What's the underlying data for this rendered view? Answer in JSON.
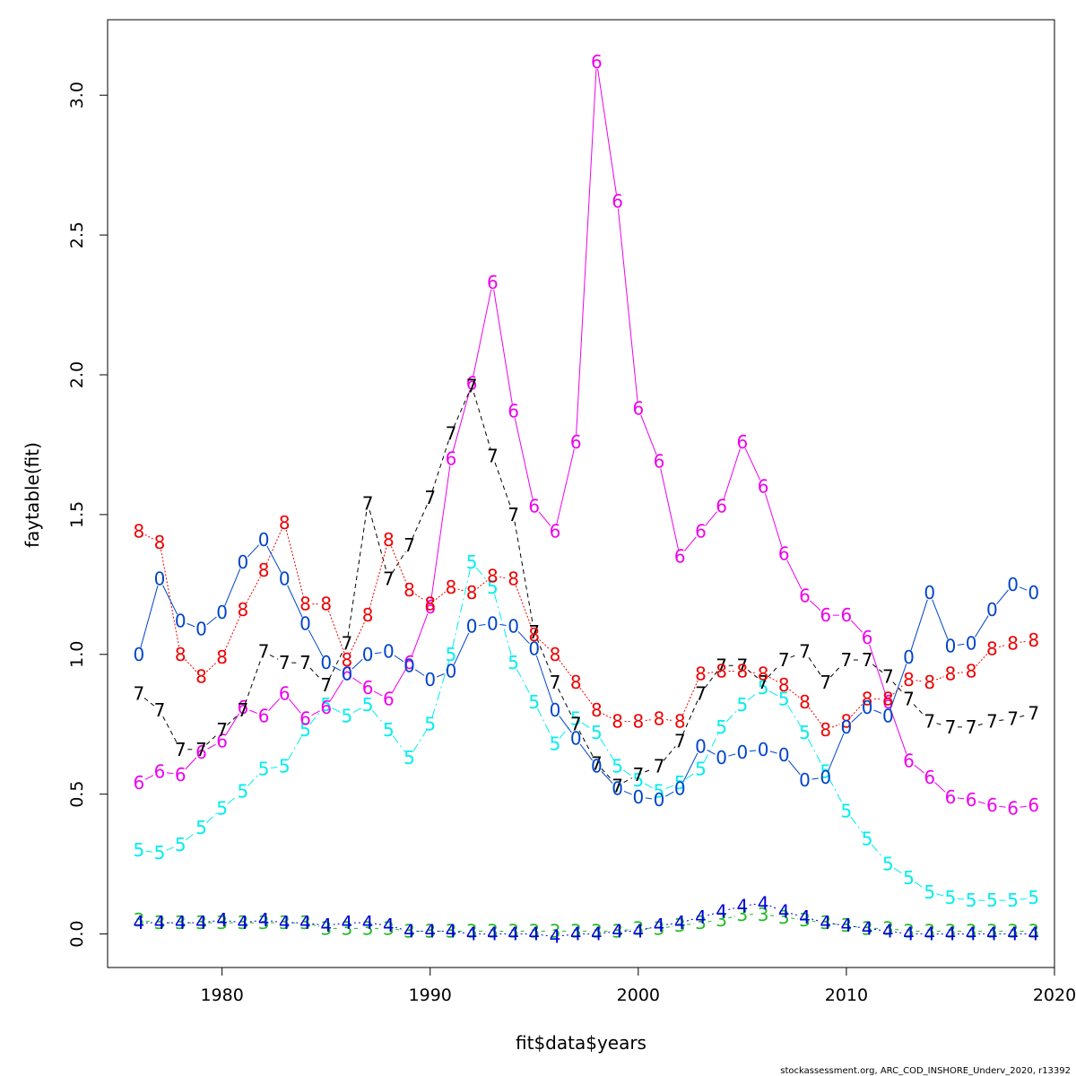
{
  "chart_data": {
    "type": "line",
    "xlabel": "fit$data$years",
    "ylabel": "faytable(fit)",
    "credit": "stockassessment.org, ARC_COD_INSHORE_Underv_2020, r13392",
    "xlim": [
      1974.5,
      2020
    ],
    "ylim": [
      -0.12,
      3.27
    ],
    "xticks": [
      1980,
      1990,
      2000,
      2010,
      2020
    ],
    "yticks": [
      0.0,
      0.5,
      1.0,
      1.5,
      2.0,
      2.5,
      3.0
    ],
    "ytick_labels": [
      "0.0",
      "0.5",
      "1.0",
      "1.5",
      "2.0",
      "2.5",
      "3.0"
    ],
    "grid": false,
    "x": [
      1976,
      1977,
      1978,
      1979,
      1980,
      1981,
      1982,
      1983,
      1984,
      1985,
      1986,
      1987,
      1988,
      1989,
      1990,
      1991,
      1992,
      1993,
      1994,
      1995,
      1996,
      1997,
      1998,
      1999,
      2000,
      2001,
      2002,
      2003,
      2004,
      2005,
      2006,
      2007,
      2008,
      2009,
      2010,
      2011,
      2012,
      2013,
      2014,
      2015,
      2016,
      2017,
      2018,
      2019
    ],
    "series": [
      {
        "name": "3",
        "color": "#22bb22",
        "dash": "4 3",
        "values": [
          0.05,
          0.04,
          0.04,
          0.04,
          0.04,
          0.04,
          0.04,
          0.04,
          0.04,
          0.02,
          0.02,
          0.02,
          0.02,
          0.01,
          0.01,
          0.01,
          0.01,
          0.01,
          0.01,
          0.01,
          0.01,
          0.01,
          0.01,
          0.01,
          0.02,
          0.02,
          0.03,
          0.04,
          0.05,
          0.07,
          0.07,
          0.06,
          0.05,
          0.04,
          0.03,
          0.02,
          0.02,
          0.01,
          0.01,
          0.01,
          0.01,
          0.01,
          0.01,
          0.01
        ]
      },
      {
        "name": "4",
        "color": "#0000dd",
        "dash": "2 3",
        "values": [
          0.04,
          0.04,
          0.04,
          0.04,
          0.05,
          0.04,
          0.05,
          0.04,
          0.04,
          0.03,
          0.04,
          0.04,
          0.03,
          0.01,
          0.01,
          0.01,
          0.0,
          0.0,
          0.0,
          0.0,
          -0.01,
          0.0,
          0.0,
          0.01,
          0.01,
          0.03,
          0.04,
          0.06,
          0.08,
          0.1,
          0.11,
          0.08,
          0.06,
          0.04,
          0.03,
          0.02,
          0.01,
          0.0,
          0.0,
          0.0,
          0.0,
          0.0,
          0.0,
          0.0
        ]
      },
      {
        "name": "5",
        "color": "#00eeee",
        "dash": "10 4 2 4",
        "values": [
          0.3,
          0.29,
          0.32,
          0.38,
          0.45,
          0.51,
          0.59,
          0.6,
          0.73,
          0.82,
          0.78,
          0.82,
          0.73,
          0.63,
          0.75,
          1.0,
          1.33,
          1.24,
          0.97,
          0.83,
          0.68,
          0.77,
          0.72,
          0.6,
          0.55,
          0.51,
          0.54,
          0.59,
          0.74,
          0.82,
          0.88,
          0.84,
          0.72,
          0.58,
          0.44,
          0.34,
          0.25,
          0.2,
          0.15,
          0.13,
          0.12,
          0.12,
          0.12,
          0.13
        ]
      },
      {
        "name": "6",
        "color": "#ee00ee",
        "dash": "",
        "values": [
          0.54,
          0.58,
          0.57,
          0.65,
          0.69,
          0.81,
          0.78,
          0.86,
          0.77,
          0.81,
          0.93,
          0.88,
          0.84,
          0.97,
          1.17,
          1.7,
          1.97,
          2.33,
          1.87,
          1.53,
          1.44,
          1.76,
          3.12,
          2.62,
          1.88,
          1.69,
          1.35,
          1.44,
          1.53,
          1.76,
          1.6,
          1.36,
          1.21,
          1.14,
          1.14,
          1.06,
          0.83,
          0.62,
          0.56,
          0.49,
          0.48,
          0.46,
          0.45,
          0.46
        ]
      },
      {
        "name": "7",
        "color": "#000000",
        "dash": "5 4",
        "values": [
          0.86,
          0.8,
          0.66,
          0.66,
          0.73,
          0.8,
          1.01,
          0.97,
          0.97,
          0.89,
          1.04,
          1.54,
          1.27,
          1.39,
          1.56,
          1.79,
          1.96,
          1.71,
          1.5,
          1.08,
          0.9,
          0.75,
          0.61,
          0.53,
          0.57,
          0.6,
          0.69,
          0.86,
          0.96,
          0.96,
          0.9,
          0.98,
          1.01,
          0.9,
          0.98,
          0.98,
          0.92,
          0.84,
          0.76,
          0.74,
          0.74,
          0.76,
          0.77,
          0.79
        ]
      },
      {
        "name": "8",
        "color": "#ee0000",
        "dash": "2 2",
        "values": [
          1.44,
          1.4,
          1.0,
          0.92,
          0.99,
          1.16,
          1.3,
          1.47,
          1.18,
          1.18,
          0.98,
          1.14,
          1.41,
          1.23,
          1.18,
          1.24,
          1.22,
          1.28,
          1.27,
          1.07,
          1.0,
          0.9,
          0.8,
          0.76,
          0.76,
          0.77,
          0.76,
          0.93,
          0.94,
          0.94,
          0.93,
          0.89,
          0.83,
          0.73,
          0.76,
          0.84,
          0.84,
          0.91,
          0.9,
          0.93,
          0.94,
          1.02,
          1.04,
          1.05
        ]
      },
      {
        "name": "0",
        "color": "#0044cc",
        "dash": "",
        "values": [
          1.0,
          1.27,
          1.12,
          1.09,
          1.15,
          1.33,
          1.41,
          1.27,
          1.11,
          0.97,
          0.93,
          1.0,
          1.01,
          0.96,
          0.91,
          0.94,
          1.1,
          1.11,
          1.1,
          1.02,
          0.8,
          0.7,
          0.6,
          0.52,
          0.49,
          0.48,
          0.52,
          0.67,
          0.63,
          0.65,
          0.66,
          0.64,
          0.55,
          0.56,
          0.74,
          0.81,
          0.78,
          0.99,
          1.22,
          1.03,
          1.04,
          1.16,
          1.25,
          1.22
        ]
      }
    ]
  }
}
